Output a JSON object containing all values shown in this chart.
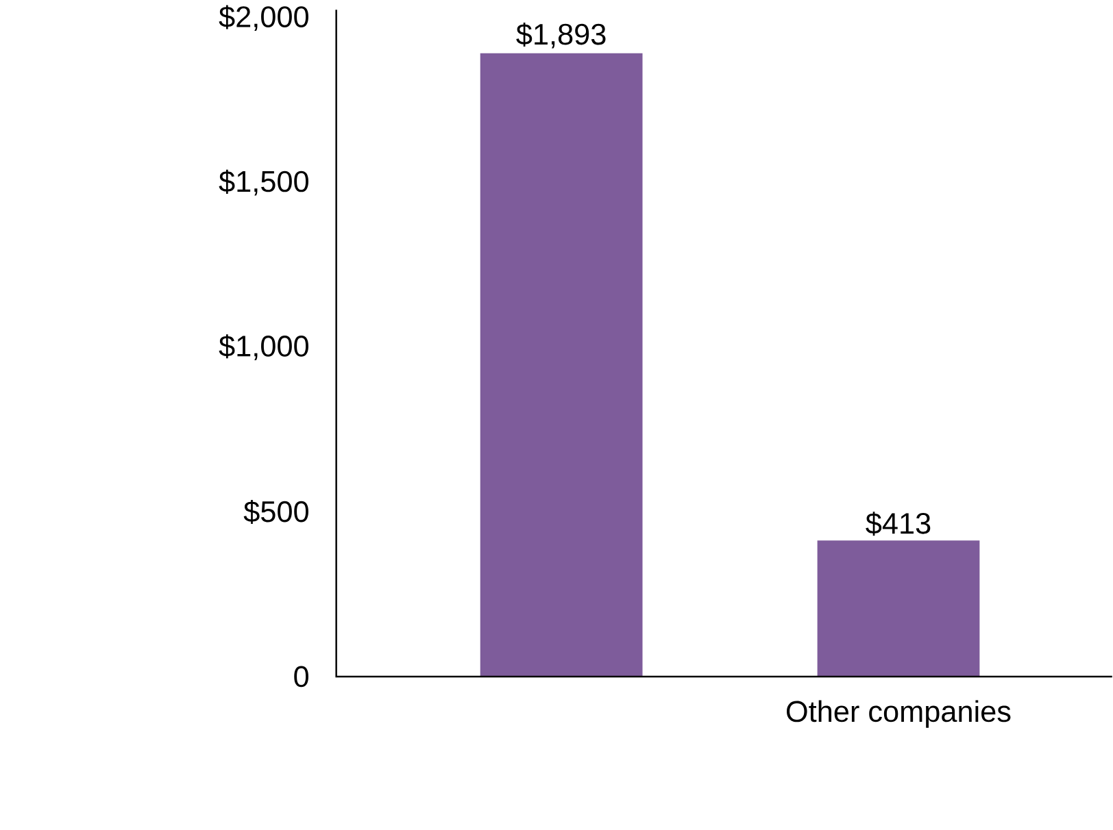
{
  "chart_data": {
    "type": "bar",
    "categories": [
      null,
      "Other companies"
    ],
    "values": [
      1893,
      413
    ],
    "value_labels": [
      "$1,893",
      "$413"
    ],
    "color": "#7e5c9b",
    "ylim": [
      0,
      2025
    ],
    "yticks": [
      {
        "value": 0,
        "label": "0"
      },
      {
        "value": 500,
        "label": "$500"
      },
      {
        "value": 1000,
        "label": "$1,000"
      },
      {
        "value": 1500,
        "label": "$1,500"
      },
      {
        "value": 2000,
        "label": "$2,000"
      }
    ],
    "grid": false
  }
}
